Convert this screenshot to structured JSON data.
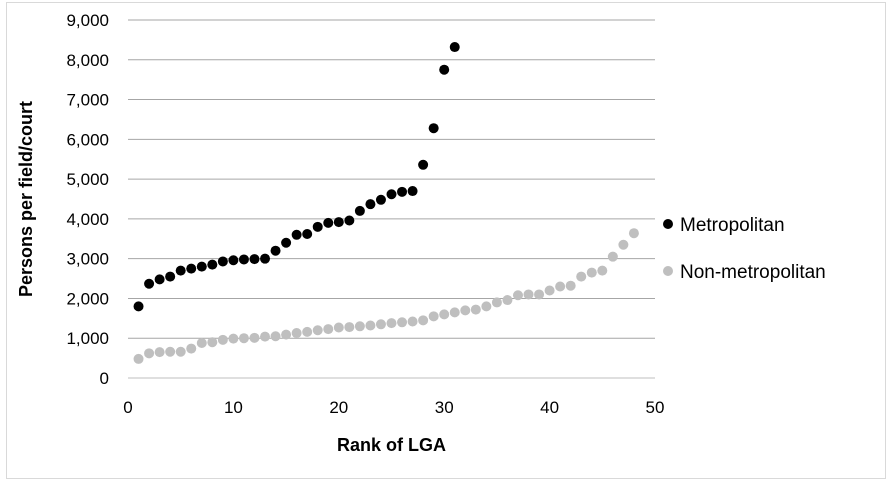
{
  "chart_data": {
    "type": "scatter",
    "title": "",
    "xlabel": "Rank of LGA",
    "ylabel": "Persons per field/court",
    "xlim": [
      0,
      50
    ],
    "ylim": [
      0,
      9000
    ],
    "x_ticks": [
      "0",
      "10",
      "20",
      "30",
      "40",
      "50"
    ],
    "y_ticks": [
      "0",
      "1,000",
      "2,000",
      "3,000",
      "4,000",
      "5,000",
      "6,000",
      "7,000",
      "8,000",
      "9,000"
    ],
    "grid": "horizontal",
    "legend_position": "right",
    "series": [
      {
        "name": "Metropolitan",
        "color": "#000000",
        "x": [
          1,
          2,
          3,
          4,
          5,
          6,
          7,
          8,
          9,
          10,
          11,
          12,
          13,
          14,
          15,
          16,
          17,
          18,
          19,
          20,
          21,
          22,
          23,
          24,
          25,
          26,
          27,
          28,
          29,
          30,
          31
        ],
        "y": [
          1800,
          2370,
          2480,
          2550,
          2700,
          2750,
          2800,
          2850,
          2930,
          2960,
          2980,
          2990,
          3000,
          3200,
          3400,
          3600,
          3620,
          3800,
          3900,
          3920,
          3960,
          4200,
          4370,
          4480,
          4620,
          4680,
          4700,
          5360,
          6280,
          7750,
          8320
        ]
      },
      {
        "name": "Non-metropolitan",
        "color": "#bfbfbf",
        "x": [
          1,
          2,
          3,
          4,
          5,
          6,
          7,
          8,
          9,
          10,
          11,
          12,
          13,
          14,
          15,
          16,
          17,
          18,
          19,
          20,
          21,
          22,
          23,
          24,
          25,
          26,
          27,
          28,
          29,
          30,
          31,
          32,
          33,
          34,
          35,
          36,
          37,
          38,
          39,
          40,
          41,
          42,
          43,
          44,
          45,
          46,
          47,
          48
        ],
        "y": [
          480,
          620,
          650,
          660,
          660,
          740,
          880,
          900,
          960,
          990,
          1000,
          1010,
          1040,
          1050,
          1090,
          1130,
          1160,
          1200,
          1230,
          1270,
          1280,
          1300,
          1320,
          1350,
          1380,
          1400,
          1420,
          1450,
          1550,
          1600,
          1650,
          1700,
          1720,
          1800,
          1900,
          1960,
          2080,
          2100,
          2100,
          2200,
          2300,
          2320,
          2550,
          2650,
          2700,
          3050,
          3350,
          3640
        ]
      }
    ]
  }
}
